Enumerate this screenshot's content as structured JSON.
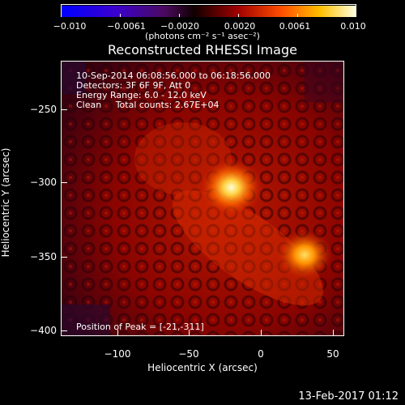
{
  "colorbar": {
    "ticks": [
      "−0.010",
      "−0.0061",
      "−0.0020",
      "0.0020",
      "0.0061",
      "0.010"
    ],
    "units": "(photons cm⁻² s⁻¹ asec⁻²)"
  },
  "title": "Reconstructed RHESSI Image",
  "info": {
    "line1": "10-Sep-2014 06:08:56.000 to 06:18:56.000",
    "line2": "Detectors: 3F 6F 9F, Att 0",
    "line3": "Energy Range: 6.0 - 12.0 keV",
    "line4": "Clean     Total counts: 2.67E+04",
    "peak": "Position of Peak = [-21,-311]"
  },
  "axes": {
    "xlabel": "Heliocentric X (arcsec)",
    "ylabel": "Heliocentric Y (arcsec)",
    "xticks": [
      "−100",
      "−50",
      "0",
      "50"
    ],
    "yticks": [
      "−250",
      "−300",
      "−350",
      "−400"
    ]
  },
  "footer": "13-Feb-2017 01:12",
  "sources": [
    {
      "x": -21,
      "y": -311,
      "intensity": 1.0
    },
    {
      "x": 30,
      "y": -357,
      "intensity": 0.85
    }
  ]
}
